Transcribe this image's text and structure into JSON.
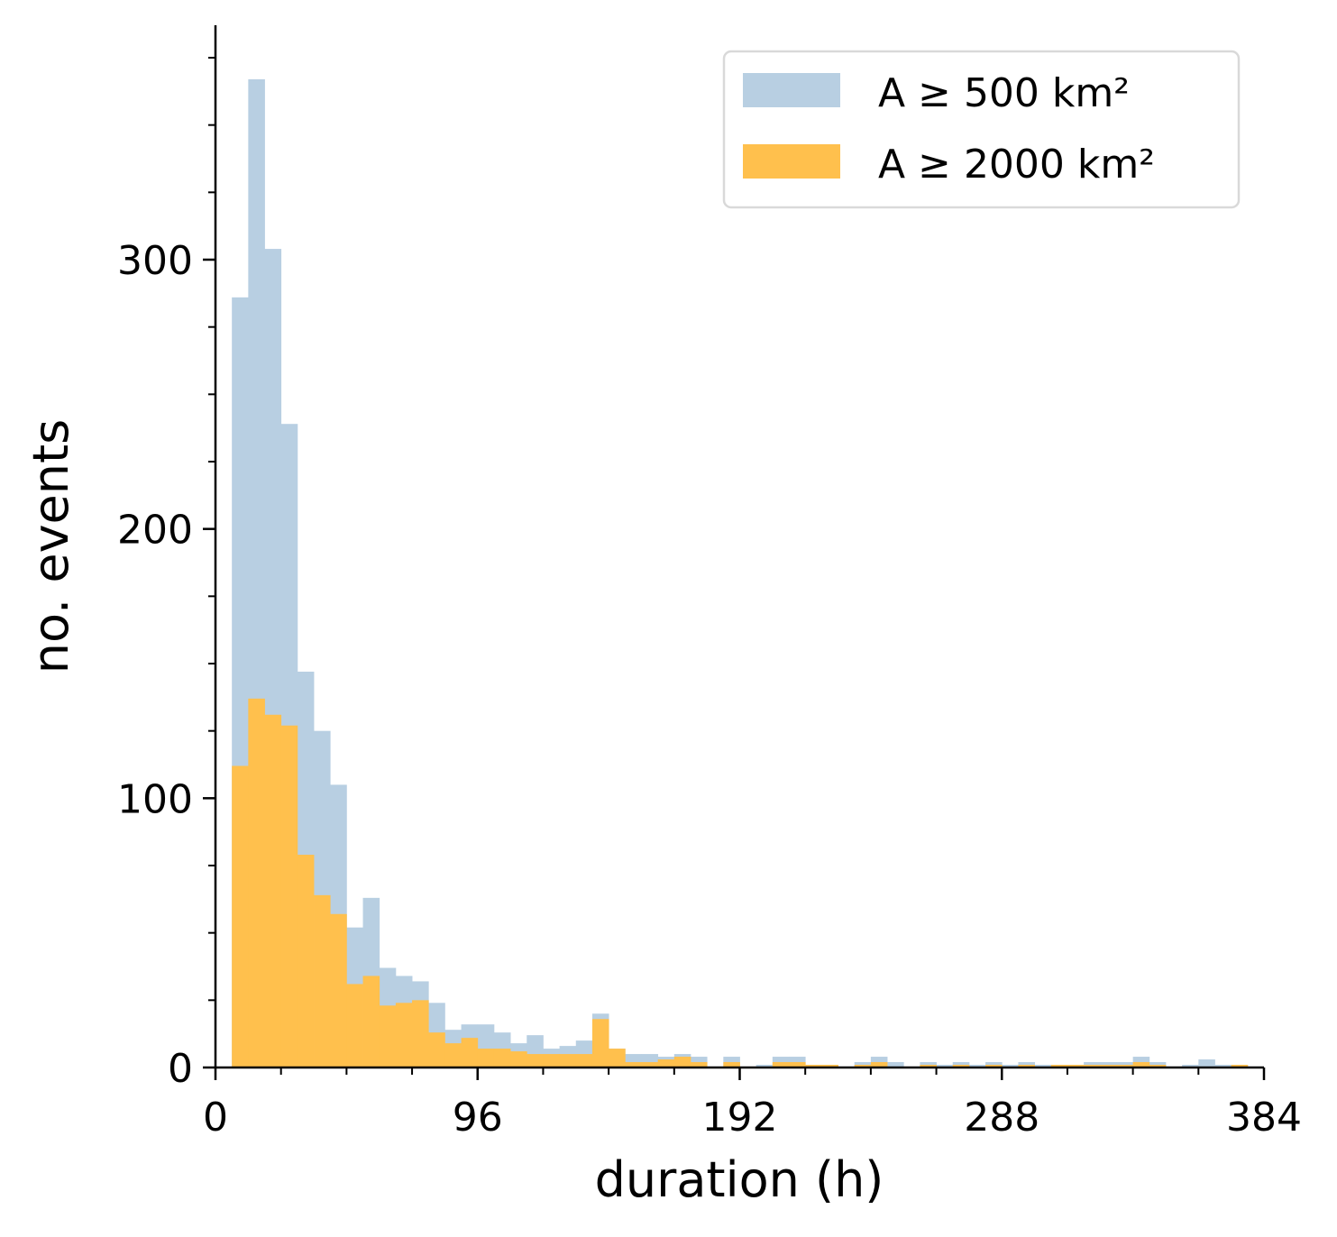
{
  "chart_data": {
    "type": "bar",
    "subtype": "overlaid-histogram",
    "title": "",
    "xlabel": "duration (h)",
    "ylabel": "no. events",
    "xlim": [
      0,
      384
    ],
    "ylim": [
      0,
      385
    ],
    "x_ticks": [
      0,
      96,
      192,
      288,
      384
    ],
    "x_tick_labels": [
      "0",
      "96",
      "192",
      "288",
      "384"
    ],
    "x_minor_step": 24,
    "y_ticks": [
      0,
      100,
      200,
      300
    ],
    "y_tick_labels": [
      "0",
      "100",
      "200",
      "300"
    ],
    "y_minor_step": 25,
    "bin_width": 6,
    "bin_start": 6,
    "grid": false,
    "legend_position": "top-right",
    "series": [
      {
        "name": "A ≥ 500 km²",
        "color": "#b8cfe2",
        "values": [
          286,
          367,
          304,
          239,
          147,
          125,
          105,
          52,
          63,
          37,
          34,
          32,
          24,
          14,
          16,
          16,
          13,
          9,
          12,
          7,
          8,
          10,
          20,
          7,
          5,
          5,
          4,
          5,
          4,
          0,
          4,
          0,
          1,
          4,
          4,
          1,
          1,
          0,
          2,
          4,
          2,
          0,
          2,
          1,
          2,
          1,
          2,
          1,
          2,
          1,
          1,
          1,
          2,
          2,
          2,
          4,
          2,
          0,
          1,
          3,
          1,
          1
        ]
      },
      {
        "name": "A ≥ 2000 km²",
        "color": "#ffc04d",
        "values": [
          112,
          137,
          131,
          127,
          79,
          64,
          57,
          31,
          34,
          23,
          24,
          25,
          13,
          9,
          11,
          7,
          7,
          6,
          5,
          5,
          5,
          5,
          18,
          7,
          2,
          2,
          3,
          4,
          2,
          0,
          2,
          0,
          0,
          2,
          2,
          1,
          1,
          0,
          1,
          2,
          0,
          0,
          1,
          0,
          1,
          0,
          1,
          0,
          1,
          0,
          1,
          1,
          1,
          1,
          1,
          2,
          1,
          0,
          0,
          0,
          0,
          1
        ]
      }
    ]
  }
}
